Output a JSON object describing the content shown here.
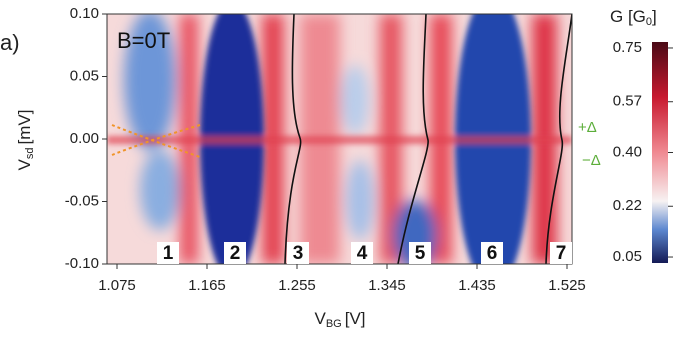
{
  "chart_data": {
    "type": "heatmap",
    "panel_label": "a)",
    "annotation": "B=0T",
    "x_label": {
      "main": "V",
      "sub": "BG",
      "unit": "[V]"
    },
    "y_label": {
      "main": "V",
      "sub": "sd",
      "unit": "[mV]"
    },
    "colorbar_label": {
      "main": "G [G",
      "sub": "0",
      "end": "]"
    },
    "xlim": [
      1.065,
      1.53
    ],
    "xticks": [
      1.075,
      1.165,
      1.255,
      1.345,
      1.435,
      1.525
    ],
    "ylim": [
      -0.1,
      0.1
    ],
    "yticks": [
      {
        "value": 0.1,
        "label": "0.10"
      },
      {
        "value": 0.05,
        "label": "0.05"
      },
      {
        "value": 0,
        "label": "0.00"
      },
      {
        "value": -0.05,
        "label": "-0.05"
      },
      {
        "value": -0.1,
        "label": "-0.10"
      }
    ],
    "clim": [
      0.03,
      0.77
    ],
    "cticks": [
      0.75,
      0.57,
      {
        "value": 0.4,
        "label": "0.40"
      },
      0.22,
      0.05
    ],
    "region_labels": [
      "1",
      "2",
      "3",
      "4",
      "5",
      "6",
      "7"
    ],
    "gap_labels": [
      "+Δ",
      "−Δ"
    ]
  }
}
